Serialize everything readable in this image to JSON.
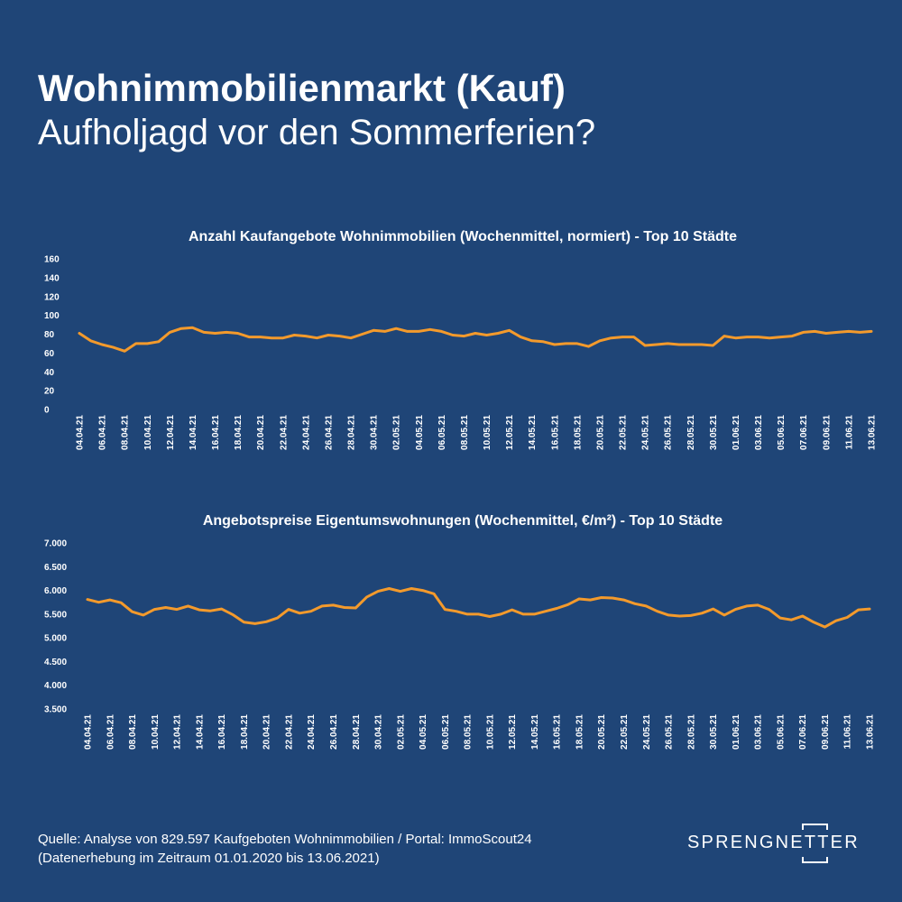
{
  "header": {
    "title": "Wohnimmobilienmarkt (Kauf)",
    "subtitle": "Aufholjagd vor den Sommerferien?"
  },
  "chart_data": [
    {
      "type": "line",
      "title": "Anzahl Kaufangebote Wohnimmobilien (Wochenmittel, normiert) - Top 10 Städte",
      "color": "#f39a2c",
      "ylim": [
        0,
        160
      ],
      "yticks": [
        0,
        20,
        40,
        60,
        80,
        100,
        120,
        140,
        160
      ],
      "ytick_labels": [
        "0",
        "20",
        "40",
        "60",
        "80",
        "100",
        "120",
        "140",
        "160"
      ],
      "grid": false,
      "x": [
        "04.04.21",
        "05.04.21",
        "06.04.21",
        "07.04.21",
        "08.04.21",
        "09.04.21",
        "10.04.21",
        "11.04.21",
        "12.04.21",
        "13.04.21",
        "14.04.21",
        "15.04.21",
        "16.04.21",
        "17.04.21",
        "18.04.21",
        "19.04.21",
        "20.04.21",
        "21.04.21",
        "22.04.21",
        "23.04.21",
        "24.04.21",
        "25.04.21",
        "26.04.21",
        "27.04.21",
        "28.04.21",
        "29.04.21",
        "30.04.21",
        "01.05.21",
        "02.05.21",
        "03.05.21",
        "04.05.21",
        "05.05.21",
        "06.05.21",
        "07.05.21",
        "08.05.21",
        "09.05.21",
        "10.05.21",
        "11.05.21",
        "12.05.21",
        "13.05.21",
        "14.05.21",
        "15.05.21",
        "16.05.21",
        "17.05.21",
        "18.05.21",
        "19.05.21",
        "20.05.21",
        "21.05.21",
        "22.05.21",
        "23.05.21",
        "24.05.21",
        "25.05.21",
        "26.05.21",
        "27.05.21",
        "28.05.21",
        "29.05.21",
        "30.05.21",
        "31.05.21",
        "01.06.21",
        "02.06.21",
        "03.06.21",
        "04.06.21",
        "05.06.21",
        "06.06.21",
        "07.06.21",
        "08.06.21",
        "09.06.21",
        "10.06.21",
        "11.06.21",
        "12.06.21",
        "13.06.21"
      ],
      "values": [
        81,
        73,
        69,
        66,
        62,
        70,
        70,
        72,
        82,
        86,
        87,
        82,
        81,
        82,
        81,
        77,
        77,
        76,
        76,
        79,
        78,
        76,
        79,
        78,
        76,
        80,
        84,
        83,
        86,
        83,
        83,
        85,
        83,
        79,
        78,
        81,
        79,
        81,
        84,
        77,
        73,
        72,
        69,
        70,
        70,
        67,
        73,
        76,
        77,
        77,
        68,
        69,
        70,
        69,
        69,
        69,
        68,
        78,
        76,
        77,
        77,
        76,
        77,
        78,
        82,
        83,
        81,
        82,
        83,
        82,
        83
      ],
      "xtick_labels": [
        "04.04.21",
        "06.04.21",
        "08.04.21",
        "10.04.21",
        "12.04.21",
        "14.04.21",
        "16.04.21",
        "18.04.21",
        "20.04.21",
        "22.04.21",
        "24.04.21",
        "26.04.21",
        "28.04.21",
        "30.04.21",
        "02.05.21",
        "04.05.21",
        "06.05.21",
        "08.05.21",
        "10.05.21",
        "12.05.21",
        "14.05.21",
        "16.05.21",
        "18.05.21",
        "20.05.21",
        "22.05.21",
        "24.05.21",
        "26.05.21",
        "28.05.21",
        "30.05.21",
        "01.06.21",
        "03.06.21",
        "05.06.21",
        "07.06.21",
        "09.06.21",
        "11.06.21",
        "13.06.21"
      ]
    },
    {
      "type": "line",
      "title": "Angebotspreise Eigentumswohnungen (Wochenmittel, €/m²) - Top 10 Städte",
      "color": "#f39a2c",
      "ylim": [
        3500,
        7000
      ],
      "yticks": [
        3500,
        4000,
        4500,
        5000,
        5500,
        6000,
        6500,
        7000
      ],
      "ytick_labels": [
        "3.500",
        "4.000",
        "4.500",
        "5.000",
        "5.500",
        "6.000",
        "6.500",
        "7.000"
      ],
      "grid": false,
      "x": [
        "04.04.21",
        "05.04.21",
        "06.04.21",
        "07.04.21",
        "08.04.21",
        "09.04.21",
        "10.04.21",
        "11.04.21",
        "12.04.21",
        "13.04.21",
        "14.04.21",
        "15.04.21",
        "16.04.21",
        "17.04.21",
        "18.04.21",
        "19.04.21",
        "20.04.21",
        "21.04.21",
        "22.04.21",
        "23.04.21",
        "24.04.21",
        "25.04.21",
        "26.04.21",
        "27.04.21",
        "28.04.21",
        "29.04.21",
        "30.04.21",
        "01.05.21",
        "02.05.21",
        "03.05.21",
        "04.05.21",
        "05.05.21",
        "06.05.21",
        "07.05.21",
        "08.05.21",
        "09.05.21",
        "10.05.21",
        "11.05.21",
        "12.05.21",
        "13.05.21",
        "14.05.21",
        "15.05.21",
        "16.05.21",
        "17.05.21",
        "18.05.21",
        "19.05.21",
        "20.05.21",
        "21.05.21",
        "22.05.21",
        "23.05.21",
        "24.05.21",
        "25.05.21",
        "26.05.21",
        "27.05.21",
        "28.05.21",
        "29.05.21",
        "30.05.21",
        "31.05.21",
        "01.06.21",
        "02.06.21",
        "03.06.21",
        "04.06.21",
        "05.06.21",
        "06.06.21",
        "07.06.21",
        "08.06.21",
        "09.06.21",
        "10.06.21",
        "11.06.21",
        "12.06.21",
        "13.06.21"
      ],
      "values": [
        5810,
        5750,
        5800,
        5740,
        5550,
        5480,
        5600,
        5640,
        5600,
        5670,
        5590,
        5570,
        5610,
        5490,
        5330,
        5300,
        5340,
        5420,
        5600,
        5520,
        5560,
        5670,
        5690,
        5640,
        5630,
        5860,
        5980,
        6040,
        5980,
        6040,
        6000,
        5930,
        5600,
        5560,
        5500,
        5500,
        5450,
        5500,
        5590,
        5500,
        5500,
        5560,
        5620,
        5700,
        5820,
        5800,
        5850,
        5840,
        5800,
        5720,
        5670,
        5560,
        5480,
        5460,
        5470,
        5520,
        5610,
        5480,
        5600,
        5670,
        5690,
        5600,
        5420,
        5380,
        5460,
        5330,
        5230,
        5360,
        5430,
        5590,
        5610
      ],
      "xtick_labels": [
        "04.04.21",
        "06.04.21",
        "08.04.21",
        "10.04.21",
        "12.04.21",
        "14.04.21",
        "16.04.21",
        "18.04.21",
        "20.04.21",
        "22.04.21",
        "24.04.21",
        "26.04.21",
        "28.04.21",
        "30.04.21",
        "02.05.21",
        "04.05.21",
        "06.05.21",
        "08.05.21",
        "10.05.21",
        "12.05.21",
        "14.05.21",
        "16.05.21",
        "18.05.21",
        "20.05.21",
        "22.05.21",
        "24.05.21",
        "26.05.21",
        "28.05.21",
        "30.05.21",
        "01.06.21",
        "03.06.21",
        "05.06.21",
        "07.06.21",
        "09.06.21",
        "11.06.21",
        "13.06.21"
      ]
    }
  ],
  "footer": {
    "source_line": "Quelle: Analyse von 829.597 Kaufgeboten Wohnimmobilien / Portal: ImmoScout24",
    "period_line": "(Datenerhebung im Zeitraum  01.01.2020 bis  13.06.2021)"
  },
  "logo": {
    "text": "SPRENGNETTER"
  }
}
